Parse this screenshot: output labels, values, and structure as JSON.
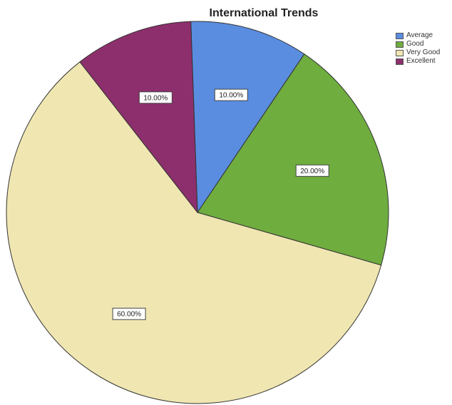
{
  "chart_data": {
    "type": "pie",
    "title": "International Trends",
    "legend_position": "top-right",
    "slices": [
      {
        "name": "Average",
        "value": 10,
        "label": "10.00%",
        "color": "#5a8de0"
      },
      {
        "name": "Good",
        "value": 20,
        "label": "20.00%",
        "color": "#6fad3f"
      },
      {
        "name": "Very Good",
        "value": 60,
        "label": "60.00%",
        "color": "#f0e6b2"
      },
      {
        "name": "Excellent",
        "value": 10,
        "label": "10.00%",
        "color": "#8d2f6c"
      }
    ]
  }
}
